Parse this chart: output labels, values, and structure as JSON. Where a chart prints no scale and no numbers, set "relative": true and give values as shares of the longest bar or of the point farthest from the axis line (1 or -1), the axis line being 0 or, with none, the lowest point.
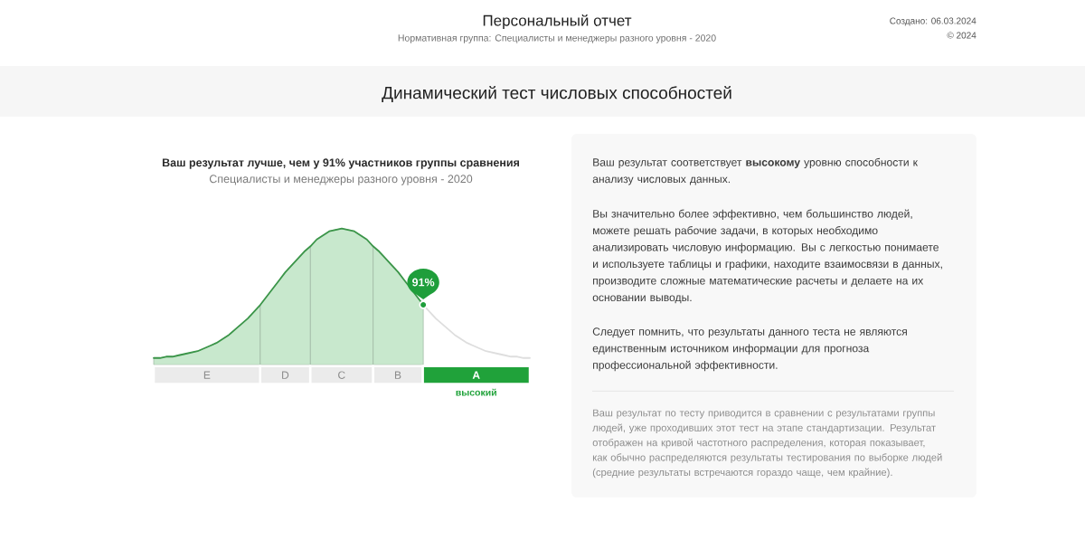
{
  "chart_data": [
    {
      "type": "other",
      "title": "Персональный отчет",
      "subtitle": "Нормативная группа: Специалисты и менеджеры разного уровня - 2020",
      "annotations": [
        "Создано: 06.03.2024",
        "© 2024",
        "Динамический тест числовых способностей"
      ]
    },
    {
      "type": "area",
      "relative": true,
      "title": "Ваш результат лучше, чем у 91% участников группы сравнения",
      "subtitle": "Специалисты и менеджеры разного уровня - 2020",
      "categories": [
        null,
        null,
        null,
        null,
        null,
        null,
        null,
        null,
        null,
        null,
        null,
        null,
        null,
        null,
        null,
        null,
        null,
        null,
        null,
        null,
        null,
        null,
        null,
        null,
        null,
        null,
        null,
        null,
        null,
        null,
        null,
        null,
        null,
        null,
        null,
        null,
        null,
        null,
        null,
        null,
        null,
        null,
        null,
        null,
        null,
        null,
        null,
        null,
        null,
        null,
        null,
        null,
        null,
        null,
        null,
        null,
        null,
        null,
        null,
        null,
        null
      ],
      "series": [
        {
          "type": "area",
          "color": "#c8e8cd",
          "values": [
            0.05,
            0.05,
            0.06,
            0.06,
            0.07,
            0.08,
            0.09,
            0.1,
            0.12,
            0.14,
            0.16,
            0.19,
            0.22,
            0.26,
            0.3,
            0.34,
            0.39,
            0.44,
            null,
            null,
            null,
            null,
            null,
            null,
            null,
            null,
            null,
            null,
            null,
            null,
            null,
            null,
            null,
            null,
            null,
            null,
            null,
            null,
            null,
            null,
            null,
            null,
            null,
            null,
            null,
            null,
            null,
            null,
            null,
            null,
            null,
            null,
            null,
            null,
            null,
            null,
            null,
            null,
            null,
            null,
            null
          ]
        },
        {
          "type": "area",
          "color": "#c8e8cd",
          "values": [
            null,
            null,
            null,
            null,
            null,
            null,
            null,
            null,
            null,
            null,
            null,
            null,
            null,
            null,
            null,
            null,
            null,
            0.44,
            0.5,
            0.56,
            0.62,
            0.68,
            0.73,
            0.78,
            0.83,
            0.87,
            null,
            null,
            null,
            null,
            null,
            null,
            null,
            null,
            null,
            null,
            null,
            null,
            null,
            null,
            null,
            null,
            null,
            null,
            null,
            null,
            null,
            null,
            null,
            null,
            null,
            null,
            null,
            null,
            null,
            null,
            null,
            null,
            null,
            null,
            null
          ]
        },
        {
          "type": "area",
          "color": "#c8e8cd",
          "values": [
            null,
            null,
            null,
            null,
            null,
            null,
            null,
            null,
            null,
            null,
            null,
            null,
            null,
            null,
            null,
            null,
            null,
            null,
            null,
            null,
            null,
            null,
            null,
            null,
            null,
            0.87,
            0.92,
            0.95,
            0.98,
            0.99,
            1.0,
            0.99,
            0.98,
            0.95,
            0.92,
            0.87,
            null,
            null,
            null,
            null,
            null,
            null,
            null,
            null,
            null,
            null,
            null,
            null,
            null,
            null,
            null,
            null,
            null,
            null,
            null,
            null,
            null,
            null,
            null,
            null,
            null
          ]
        },
        {
          "type": "area",
          "color": "#c8e8cd",
          "values": [
            null,
            null,
            null,
            null,
            null,
            null,
            null,
            null,
            null,
            null,
            null,
            null,
            null,
            null,
            null,
            null,
            null,
            null,
            null,
            null,
            null,
            null,
            null,
            null,
            null,
            null,
            null,
            null,
            null,
            null,
            null,
            null,
            null,
            null,
            null,
            0.87,
            0.83,
            0.78,
            0.73,
            0.68,
            0.62,
            0.56,
            0.5,
            0.44,
            null,
            null,
            null,
            null,
            null,
            null,
            null,
            null,
            null,
            null,
            null,
            null,
            null,
            null,
            null,
            null,
            null
          ]
        },
        {
          "type": "line",
          "color": "#3b9549",
          "values": [
            0.05,
            0.05,
            0.06,
            0.06,
            0.07,
            0.08,
            0.09,
            0.1,
            0.12,
            0.14,
            0.16,
            0.19,
            0.22,
            0.26,
            0.3,
            0.34,
            0.39,
            0.44,
            0.5,
            0.56,
            0.62,
            0.68,
            0.73,
            0.78,
            0.83,
            0.87,
            0.92,
            0.95,
            0.98,
            0.99,
            1.0,
            0.99,
            0.98,
            0.95,
            0.92,
            0.87,
            0.83,
            0.78,
            0.73,
            0.68,
            0.62,
            0.56,
            0.5,
            0.44,
            null,
            null,
            null,
            null,
            null,
            null,
            null,
            null,
            null,
            null,
            null,
            null,
            null,
            null,
            null,
            null,
            null
          ]
        },
        {
          "type": "line",
          "color": "#dedede",
          "values": [
            null,
            null,
            null,
            null,
            null,
            null,
            null,
            null,
            null,
            null,
            null,
            null,
            null,
            null,
            null,
            null,
            null,
            null,
            null,
            null,
            null,
            null,
            null,
            null,
            null,
            null,
            null,
            null,
            null,
            null,
            null,
            null,
            null,
            null,
            null,
            null,
            null,
            null,
            null,
            null,
            null,
            null,
            null,
            0.44,
            0.39,
            0.34,
            0.3,
            0.26,
            0.22,
            0.19,
            0.16,
            0.14,
            0.12,
            0.1,
            0.09,
            0.08,
            0.07,
            0.06,
            0.06,
            0.05,
            0.05
          ]
        }
      ],
      "annotations": [
        {
          "text": "91%",
          "y": 0.44
        }
      ]
    },
    {
      "type": "bar",
      "orientation": "horizontal",
      "stacked": true,
      "relative": true,
      "categories": [
        null
      ],
      "series": [
        {
          "name": "E",
          "color": "#ebebeb",
          "values": [
            0.283
          ]
        },
        {
          "name": "D",
          "color": "#ebebeb",
          "values": [
            0.133
          ]
        },
        {
          "name": "C",
          "color": "#ebebeb",
          "values": [
            0.167
          ]
        },
        {
          "name": "B",
          "color": "#ebebeb",
          "values": [
            0.132
          ]
        },
        {
          "name": "A",
          "color": "#20a23a",
          "values": [
            0.285
          ]
        }
      ],
      "annotations": [
        "высокий"
      ]
    },
    {
      "type": "other",
      "annotations": [
        "Ваш результат соответствует **высокому** уровню способности к анализу числовых данных.",
        "Вы значительно более эффективно, чем большинство людей, можете решать рабочие задачи, в которых необходимо анализировать числовую информацию. Вы с легкостью понимаете и используете таблицы и графики, находите взаимосвязи в данных, производите сложные математические расчеты и делаете на их основании выводы.",
        "Следует помнить, что результаты данного теста не являются единственным источником информации для прогноза профессиональной эффективности.",
        "Ваш результат по тесту приводится в сравнении с результатами группы людей, уже проходивших этот тест на этапе стандартизации. Результат отображен на кривой частотного распределения, которая показывает, как обычно распределяются результаты тестирования по выборке людей (средние результаты встречаются гораздо чаще, чем крайние)."
      ]
    }
  ]
}
